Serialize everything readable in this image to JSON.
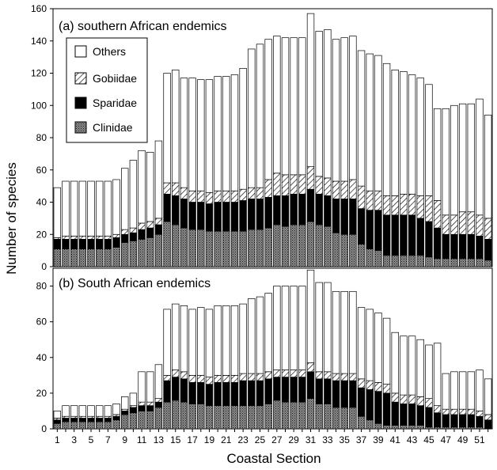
{
  "figure": {
    "ylabel": "Number of species",
    "xlabel": "Coastal Section",
    "legend": {
      "position": "top-left of panel (a)",
      "entries": [
        {
          "label": "Others",
          "pattern": "white"
        },
        {
          "label": "Gobiidae",
          "pattern": "diagonal-hatch"
        },
        {
          "label": "Sparidae",
          "pattern": "black"
        },
        {
          "label": "Clinidae",
          "pattern": "dense-dots"
        }
      ]
    }
  },
  "chart_data": [
    {
      "type": "bar",
      "stacked": true,
      "title": "(a) southern African endemics",
      "xlabel": "Coastal Section",
      "ylabel": "Number of species",
      "ylim": [
        0,
        160
      ],
      "yticks": [
        0,
        20,
        40,
        60,
        80,
        100,
        120,
        140,
        160
      ],
      "categories": [
        1,
        2,
        3,
        4,
        5,
        6,
        7,
        8,
        9,
        10,
        11,
        12,
        13,
        14,
        15,
        16,
        17,
        18,
        19,
        20,
        21,
        22,
        23,
        24,
        25,
        26,
        27,
        28,
        29,
        30,
        31,
        32,
        33,
        34,
        35,
        36,
        37,
        38,
        39,
        40,
        41,
        42,
        43,
        44,
        45,
        46,
        47,
        48,
        49,
        50,
        51,
        52
      ],
      "series": [
        {
          "name": "Clinidae",
          "values": [
            11,
            11,
            11,
            11,
            11,
            11,
            11,
            12,
            15,
            16,
            17,
            18,
            20,
            28,
            26,
            24,
            23,
            23,
            22,
            22,
            22,
            22,
            22,
            23,
            23,
            24,
            26,
            25,
            26,
            26,
            28,
            26,
            25,
            21,
            20,
            20,
            14,
            11,
            10,
            7,
            7,
            7,
            7,
            7,
            6,
            5,
            5,
            5,
            5,
            5,
            5,
            4
          ]
        },
        {
          "name": "Sparidae",
          "values": [
            6,
            6,
            6,
            6,
            6,
            6,
            6,
            6,
            5,
            5,
            6,
            6,
            6,
            17,
            18,
            18,
            17,
            17,
            17,
            18,
            18,
            18,
            19,
            19,
            19,
            19,
            18,
            19,
            19,
            19,
            20,
            19,
            19,
            21,
            22,
            22,
            22,
            24,
            25,
            25,
            25,
            25,
            25,
            23,
            22,
            19,
            15,
            15,
            15,
            15,
            14,
            13
          ]
        },
        {
          "name": "Gobiidae",
          "values": [
            1,
            2,
            2,
            2,
            2,
            2,
            2,
            2,
            3,
            3,
            4,
            4,
            4,
            7,
            8,
            7,
            7,
            7,
            7,
            7,
            7,
            7,
            7,
            7,
            7,
            11,
            14,
            13,
            12,
            12,
            14,
            11,
            11,
            11,
            11,
            12,
            14,
            12,
            12,
            12,
            12,
            13,
            13,
            14,
            16,
            17,
            12,
            12,
            14,
            14,
            13,
            13
          ]
        },
        {
          "name": "Others",
          "values": [
            31,
            34,
            34,
            34,
            34,
            34,
            34,
            34,
            38,
            42,
            45,
            43,
            48,
            68,
            70,
            68,
            70,
            69,
            70,
            71,
            71,
            72,
            75,
            86,
            89,
            87,
            85,
            85,
            85,
            85,
            95,
            90,
            92,
            88,
            89,
            89,
            84,
            85,
            84,
            82,
            78,
            76,
            74,
            73,
            69,
            57,
            66,
            68,
            67,
            67,
            72,
            64
          ]
        }
      ],
      "totals": [
        49,
        53,
        53,
        53,
        53,
        53,
        53,
        54,
        61,
        66,
        72,
        71,
        78,
        120,
        122,
        117,
        117,
        116,
        116,
        118,
        118,
        119,
        123,
        135,
        138,
        141,
        143,
        142,
        142,
        142,
        157,
        146,
        147,
        141,
        142,
        143,
        134,
        132,
        131,
        126,
        122,
        121,
        119,
        117,
        113,
        98,
        98,
        100,
        101,
        101,
        104,
        94
      ]
    },
    {
      "type": "bar",
      "stacked": true,
      "title": "(b) South African endemics",
      "xlabel": "Coastal Section",
      "ylabel": "Number of species",
      "ylim": [
        0,
        90
      ],
      "yticks": [
        0,
        20,
        40,
        60,
        80
      ],
      "xticks": [
        1,
        3,
        5,
        7,
        9,
        11,
        13,
        15,
        17,
        19,
        21,
        23,
        25,
        27,
        29,
        31,
        33,
        35,
        37,
        39,
        41,
        43,
        45,
        47,
        49,
        51
      ],
      "categories": [
        1,
        2,
        3,
        4,
        5,
        6,
        7,
        8,
        9,
        10,
        11,
        12,
        13,
        14,
        15,
        16,
        17,
        18,
        19,
        20,
        21,
        22,
        23,
        24,
        25,
        26,
        27,
        28,
        29,
        30,
        31,
        32,
        33,
        34,
        35,
        36,
        37,
        38,
        39,
        40,
        41,
        42,
        43,
        44,
        45,
        46,
        47,
        48,
        49,
        50,
        51,
        52
      ],
      "series": [
        {
          "name": "Clinidae",
          "values": [
            3,
            4,
            4,
            4,
            4,
            4,
            4,
            5,
            8,
            9,
            10,
            10,
            12,
            15,
            16,
            15,
            14,
            14,
            13,
            13,
            13,
            13,
            13,
            13,
            13,
            14,
            16,
            15,
            15,
            15,
            17,
            14,
            14,
            12,
            12,
            12,
            7,
            5,
            3,
            2,
            2,
            2,
            2,
            2,
            1,
            1,
            1,
            1,
            1,
            1,
            1,
            0
          ]
        },
        {
          "name": "Sparidae",
          "values": [
            2,
            2,
            2,
            2,
            2,
            2,
            2,
            2,
            2,
            3,
            3,
            3,
            3,
            12,
            13,
            13,
            12,
            12,
            12,
            13,
            13,
            13,
            14,
            14,
            14,
            14,
            13,
            14,
            14,
            14,
            15,
            14,
            14,
            15,
            15,
            15,
            16,
            17,
            18,
            18,
            13,
            12,
            12,
            11,
            11,
            8,
            7,
            7,
            7,
            7,
            6,
            5
          ]
        },
        {
          "name": "Gobiidae",
          "values": [
            1,
            1,
            1,
            1,
            1,
            1,
            1,
            1,
            1,
            1,
            2,
            2,
            2,
            3,
            4,
            4,
            4,
            4,
            4,
            4,
            4,
            4,
            4,
            4,
            4,
            4,
            4,
            4,
            4,
            4,
            5,
            4,
            4,
            4,
            4,
            4,
            5,
            5,
            5,
            5,
            5,
            5,
            5,
            5,
            5,
            4,
            3,
            3,
            3,
            3,
            3,
            3
          ]
        },
        {
          "name": "Others",
          "values": [
            4,
            6,
            6,
            6,
            6,
            6,
            6,
            6,
            7,
            7,
            17,
            17,
            19,
            37,
            37,
            37,
            37,
            38,
            38,
            39,
            39,
            39,
            39,
            42,
            43,
            44,
            47,
            47,
            47,
            47,
            52,
            50,
            50,
            46,
            46,
            46,
            40,
            40,
            39,
            37,
            34,
            33,
            33,
            32,
            30,
            35,
            20,
            21,
            21,
            21,
            23,
            20
          ]
        }
      ],
      "totals": [
        10,
        13,
        13,
        13,
        13,
        13,
        13,
        14,
        18,
        20,
        32,
        32,
        36,
        67,
        70,
        69,
        67,
        68,
        67,
        69,
        69,
        69,
        70,
        73,
        74,
        76,
        80,
        80,
        80,
        80,
        89,
        82,
        82,
        77,
        77,
        77,
        68,
        67,
        65,
        62,
        54,
        52,
        52,
        50,
        47,
        48,
        31,
        32,
        32,
        32,
        33,
        28
      ]
    }
  ]
}
